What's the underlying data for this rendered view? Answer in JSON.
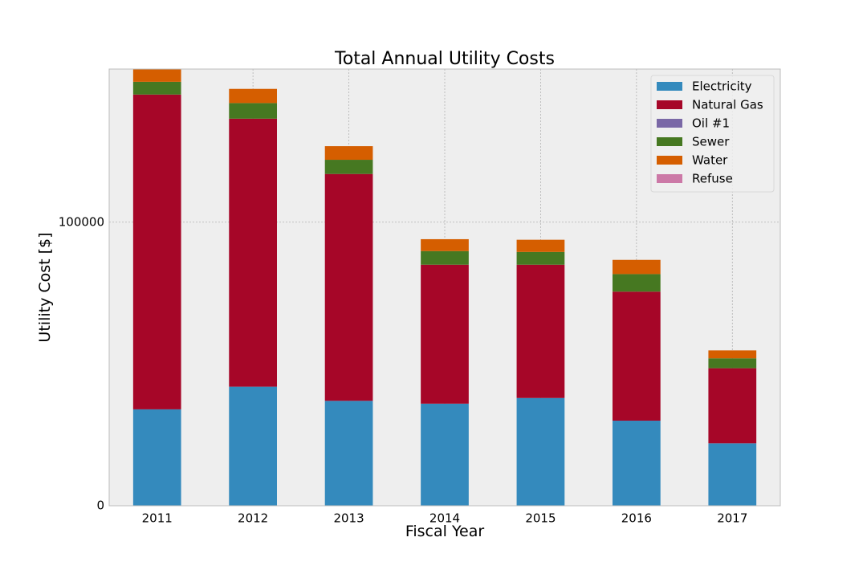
{
  "chart_data": {
    "type": "bar",
    "stacked": true,
    "title": "Total Annual Utility Costs",
    "xlabel": "Fiscal Year",
    "ylabel": "Utility Cost [$]",
    "categories": [
      "2011",
      "2012",
      "2013",
      "2014",
      "2015",
      "2016",
      "2017"
    ],
    "ylim": [
      0,
      154000
    ],
    "yticks": [
      0,
      100000
    ],
    "ytick_labels": [
      "0",
      "100000"
    ],
    "grid": true,
    "legend_position": "top-right",
    "series": [
      {
        "name": "Electricity",
        "color": "#348abd",
        "values": [
          34000,
          42000,
          37000,
          36000,
          38000,
          30000,
          22000
        ]
      },
      {
        "name": "Natural Gas",
        "color": "#a60628",
        "values": [
          111000,
          94500,
          80000,
          49000,
          47000,
          45500,
          26500
        ]
      },
      {
        "name": "Oil #1",
        "color": "#7a68a6",
        "values": [
          0,
          0,
          0,
          0,
          0,
          0,
          0
        ]
      },
      {
        "name": "Sewer",
        "color": "#467821",
        "values": [
          4500,
          5500,
          5000,
          4800,
          4500,
          6200,
          3500
        ]
      },
      {
        "name": "Water",
        "color": "#d55e00",
        "values": [
          4500,
          5000,
          4800,
          4200,
          4300,
          5000,
          2800
        ]
      },
      {
        "name": "Refuse",
        "color": "#cc79a7",
        "values": [
          0,
          0,
          0,
          0,
          0,
          0,
          0
        ]
      }
    ]
  }
}
